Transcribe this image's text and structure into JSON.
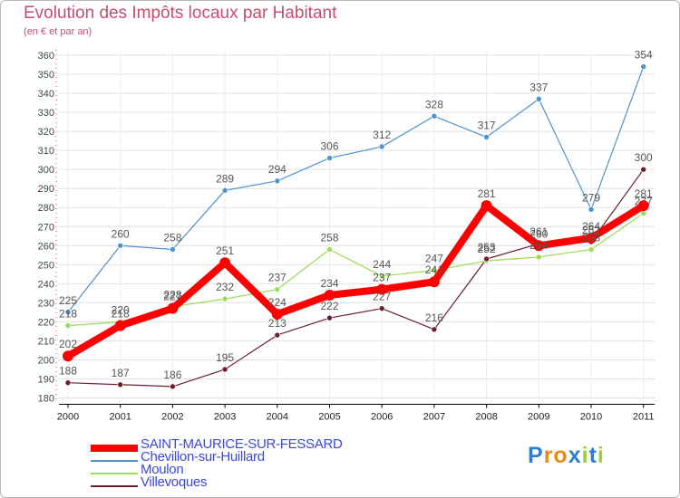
{
  "title": "Evolution des Impôts locaux par Habitant",
  "subtitle": "(en € et par an)",
  "brand": {
    "letters": [
      "P",
      "r",
      "o",
      "x",
      "i",
      "t",
      "i"
    ],
    "colors": [
      "#2f7fce",
      "#e88a1a",
      "#e88a1a",
      "#2f7fce",
      "#9ccd3a",
      "#2f7fce",
      "#9ccd3a"
    ]
  },
  "chart_data": {
    "type": "line",
    "title": "Evolution des Impôts locaux par Habitant",
    "subtitle": "(en € et par an)",
    "xlabel": "",
    "ylabel": "",
    "ylim": [
      180,
      360
    ],
    "yticks": [
      180,
      190,
      200,
      210,
      220,
      230,
      240,
      250,
      260,
      270,
      280,
      290,
      300,
      310,
      320,
      330,
      340,
      350,
      360
    ],
    "grid": true,
    "x": [
      "2000",
      "2001",
      "2002",
      "2003",
      "2004",
      "2005",
      "2006",
      "2007",
      "2008",
      "2009",
      "2010",
      "2011"
    ],
    "series": [
      {
        "name": "SAINT-MAURICE-SUR-FESSARD",
        "color": "#ff0000",
        "values": [
          202,
          218,
          227,
          251,
          224,
          234,
          237,
          241,
          281,
          260,
          264,
          281
        ]
      },
      {
        "name": "Chevillon-sur-Huillard",
        "color": "#4f93cc",
        "values": [
          225,
          260,
          258,
          289,
          294,
          306,
          312,
          328,
          317,
          337,
          279,
          354
        ]
      },
      {
        "name": "Moulon",
        "color": "#99dd55",
        "values": [
          218,
          220,
          228,
          232,
          237,
          258,
          244,
          247,
          252,
          254,
          258,
          277
        ]
      },
      {
        "name": "Villevoques",
        "color": "#6b1f2a",
        "values": [
          188,
          187,
          186,
          195,
          213,
          222,
          227,
          216,
          253,
          261,
          262,
          300
        ]
      }
    ]
  }
}
